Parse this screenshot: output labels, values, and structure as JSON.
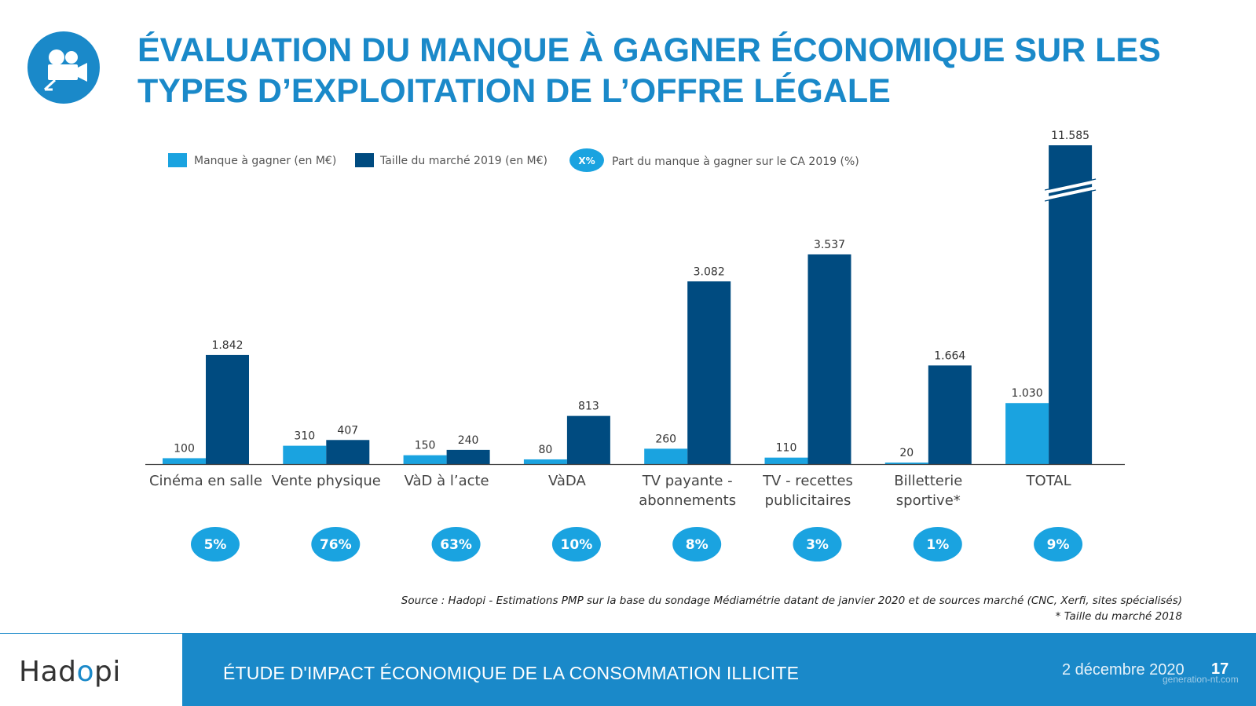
{
  "header": {
    "title_line1": "ÉVALUATION DU MANQUE À GAGNER ÉCONOMIQUE SUR LES",
    "title_line2": "TYPES D’EXPLOITATION DE L’OFFRE LÉGALE",
    "icon": "movie-camera-icon"
  },
  "colors": {
    "accent": "#1a89c9",
    "manque": "#1aa3e0",
    "taille": "#004b80",
    "pct_ellipse": "#1aa3e0"
  },
  "chart_data": {
    "type": "bar",
    "categories": [
      [
        "Cinéma en salle"
      ],
      [
        "Vente physique"
      ],
      [
        "VàD à l’acte"
      ],
      [
        "VàDA"
      ],
      [
        "TV payante -",
        "abonnements"
      ],
      [
        "TV - recettes",
        "publicitaires"
      ],
      [
        "Billetterie",
        "sportive*"
      ],
      [
        "TOTAL"
      ]
    ],
    "series": [
      {
        "name": "Manque à gagner (en M€)",
        "values": [
          100,
          310,
          150,
          80,
          260,
          110,
          20,
          1030
        ],
        "labels": [
          "100",
          "310",
          "150",
          "80",
          "260",
          "110",
          "20",
          "1.030"
        ]
      },
      {
        "name": "Taille du marché 2019 (en M€)",
        "values": [
          1842,
          407,
          240,
          813,
          3082,
          3537,
          1664,
          11585
        ],
        "labels": [
          "1.842",
          "407",
          "240",
          "813",
          "3.082",
          "3.537",
          "1.664",
          "11.585"
        ]
      }
    ],
    "share_legend": {
      "symbol": "X%",
      "label": "Part du manque à gagner sur le CA 2019 (%)"
    },
    "share_percent": [
      "5%",
      "76%",
      "63%",
      "10%",
      "8%",
      "3%",
      "1%",
      "9%"
    ],
    "axis_break": "TOTAL market bar truncated with break marks",
    "grid": false,
    "legend_position": "top-left"
  },
  "source": {
    "line1": "Source : Hadopi - Estimations PMP sur la base du sondage Médiamétrie datant de janvier 2020 et de sources marché (CNC, Xerfi, sites spécialisés)",
    "line2": "* Taille du marché 2018"
  },
  "footer": {
    "logo_pre": "Had",
    "logo_o": "o",
    "logo_post": "pi",
    "title": "ÉTUDE D'IMPACT ÉCONOMIQUE DE LA CONSOMMATION ILLICITE",
    "date": "2 décembre 2020",
    "page": "17",
    "watermark": "generation-nt.com"
  }
}
